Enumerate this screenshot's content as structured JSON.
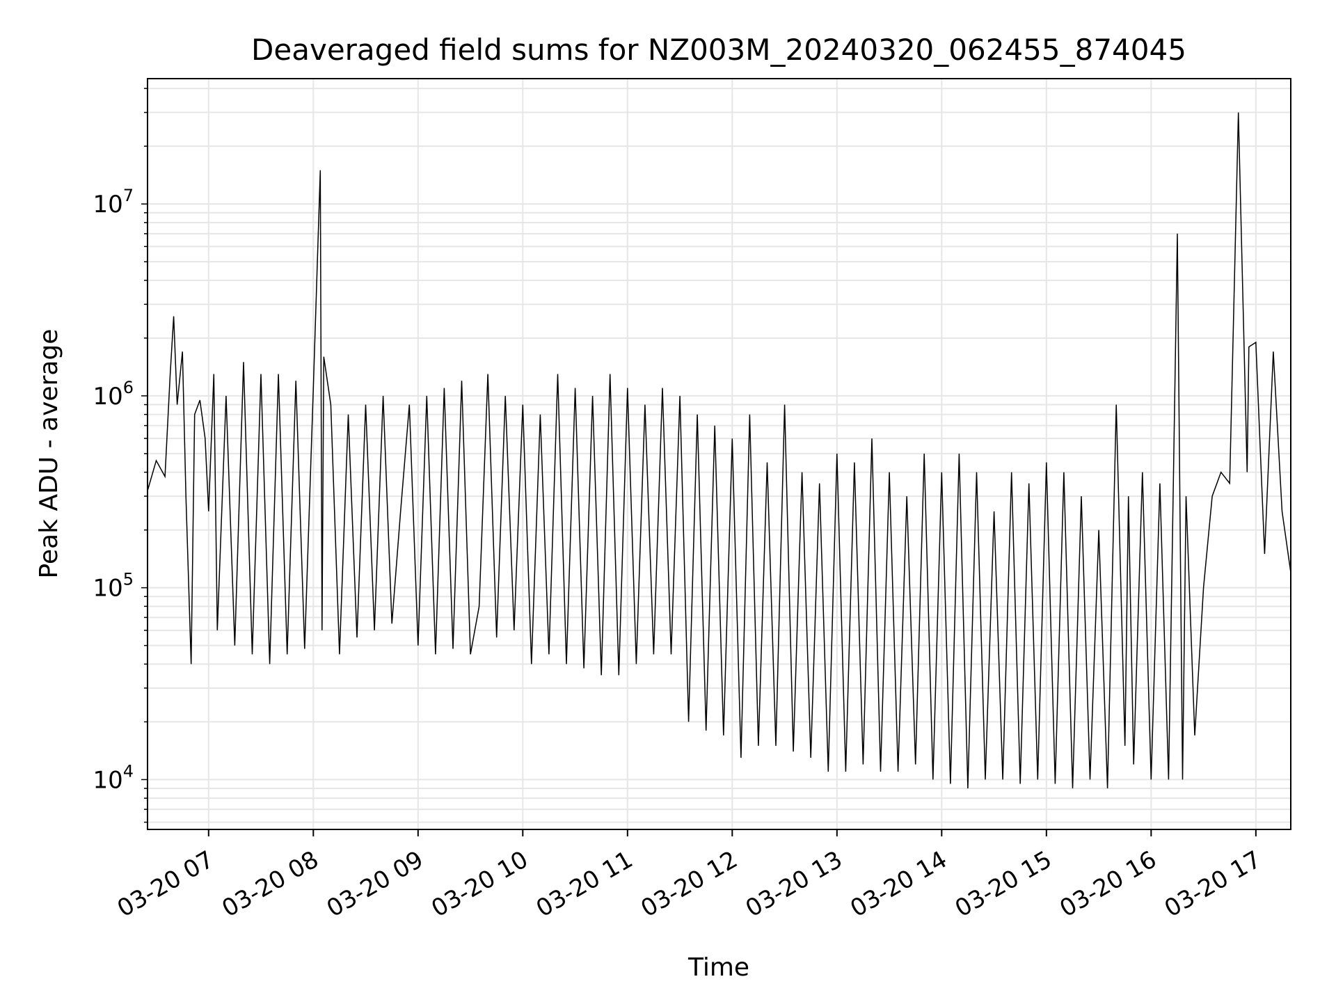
{
  "chart_data": {
    "type": "line",
    "title": "Deaveraged field sums for NZ003M_20240320_062455_874045",
    "xlabel": "Time",
    "ylabel": "Peak ADU - average",
    "x_scale": "time",
    "y_scale": "log",
    "xlim": [
      "03-20 06:25",
      "03-20 17:20"
    ],
    "ylim": [
      5500,
      45000000
    ],
    "grid": true,
    "grid_minor": true,
    "line_color": "#000000",
    "x_tick_labels": [
      "03-20 07",
      "03-20 08",
      "03-20 09",
      "03-20 10",
      "03-20 11",
      "03-20 12",
      "03-20 13",
      "03-20 14",
      "03-20 15",
      "03-20 16",
      "03-20 17"
    ],
    "y_ticks": [
      {
        "base": "10",
        "exp": "4",
        "value": 10000
      },
      {
        "base": "10",
        "exp": "5",
        "value": 100000
      },
      {
        "base": "10",
        "exp": "6",
        "value": 1000000
      },
      {
        "base": "10",
        "exp": "7",
        "value": 10000000
      }
    ],
    "series": [
      {
        "x": [
          "03-20 06:25",
          "03-20 06:30",
          "03-20 06:35",
          "03-20 06:38",
          "03-20 06:40",
          "03-20 06:42",
          "03-20 06:45",
          "03-20 06:47",
          "03-20 06:50",
          "03-20 06:52",
          "03-20 06:55",
          "03-20 06:58",
          "03-20 07:00",
          "03-20 07:03",
          "03-20 07:05",
          "03-20 07:10",
          "03-20 07:15",
          "03-20 07:20",
          "03-20 07:25",
          "03-20 07:30",
          "03-20 07:35",
          "03-20 07:40",
          "03-20 07:45",
          "03-20 07:50",
          "03-20 07:55",
          "03-20 08:00",
          "03-20 08:04",
          "03-20 08:05",
          "03-20 08:06",
          "03-20 08:10",
          "03-20 08:15",
          "03-20 08:20",
          "03-20 08:25",
          "03-20 08:30",
          "03-20 08:35",
          "03-20 08:40",
          "03-20 08:45",
          "03-20 08:50",
          "03-20 08:55",
          "03-20 09:00",
          "03-20 09:05",
          "03-20 09:10",
          "03-20 09:15",
          "03-20 09:20",
          "03-20 09:25",
          "03-20 09:30",
          "03-20 09:35",
          "03-20 09:40",
          "03-20 09:45",
          "03-20 09:50",
          "03-20 09:55",
          "03-20 10:00",
          "03-20 10:05",
          "03-20 10:10",
          "03-20 10:15",
          "03-20 10:20",
          "03-20 10:25",
          "03-20 10:30",
          "03-20 10:35",
          "03-20 10:40",
          "03-20 10:45",
          "03-20 10:50",
          "03-20 10:55",
          "03-20 11:00",
          "03-20 11:05",
          "03-20 11:10",
          "03-20 11:15",
          "03-20 11:20",
          "03-20 11:25",
          "03-20 11:30",
          "03-20 11:35",
          "03-20 11:40",
          "03-20 11:45",
          "03-20 11:50",
          "03-20 11:55",
          "03-20 12:00",
          "03-20 12:05",
          "03-20 12:10",
          "03-20 12:15",
          "03-20 12:20",
          "03-20 12:25",
          "03-20 12:30",
          "03-20 12:35",
          "03-20 12:40",
          "03-20 12:45",
          "03-20 12:50",
          "03-20 12:55",
          "03-20 13:00",
          "03-20 13:05",
          "03-20 13:10",
          "03-20 13:15",
          "03-20 13:20",
          "03-20 13:25",
          "03-20 13:30",
          "03-20 13:35",
          "03-20 13:40",
          "03-20 13:45",
          "03-20 13:50",
          "03-20 13:55",
          "03-20 14:00",
          "03-20 14:05",
          "03-20 14:10",
          "03-20 14:15",
          "03-20 14:20",
          "03-20 14:25",
          "03-20 14:30",
          "03-20 14:35",
          "03-20 14:40",
          "03-20 14:45",
          "03-20 14:50",
          "03-20 14:55",
          "03-20 15:00",
          "03-20 15:05",
          "03-20 15:10",
          "03-20 15:15",
          "03-20 15:20",
          "03-20 15:25",
          "03-20 15:30",
          "03-20 15:35",
          "03-20 15:40",
          "03-20 15:45",
          "03-20 15:47",
          "03-20 15:50",
          "03-20 15:55",
          "03-20 16:00",
          "03-20 16:05",
          "03-20 16:10",
          "03-20 16:15",
          "03-20 16:18",
          "03-20 16:20",
          "03-20 16:25",
          "03-20 16:30",
          "03-20 16:35",
          "03-20 16:40",
          "03-20 16:45",
          "03-20 16:50",
          "03-20 16:55",
          "03-20 16:56",
          "03-20 17:00",
          "03-20 17:05",
          "03-20 17:10",
          "03-20 17:15",
          "03-20 17:20"
        ],
        "y": [
          320000,
          460000,
          380000,
          1300000,
          2600000,
          900000,
          1700000,
          300000,
          40000,
          800000,
          950000,
          600000,
          250000,
          1300000,
          60000,
          1000000,
          50000,
          1500000,
          45000,
          1300000,
          40000,
          1300000,
          45000,
          1200000,
          48000,
          1100000,
          15000000,
          60000,
          1600000,
          900000,
          45000,
          800000,
          55000,
          900000,
          60000,
          1000000,
          65000,
          250000,
          900000,
          50000,
          1000000,
          45000,
          1100000,
          48000,
          1200000,
          45000,
          80000,
          1300000,
          55000,
          1000000,
          60000,
          900000,
          40000,
          800000,
          45000,
          1300000,
          40000,
          1100000,
          38000,
          1000000,
          35000,
          1300000,
          35000,
          1100000,
          40000,
          900000,
          45000,
          1100000,
          45000,
          1000000,
          20000,
          800000,
          18000,
          700000,
          17000,
          600000,
          13000,
          800000,
          15000,
          450000,
          15000,
          900000,
          14000,
          400000,
          13000,
          350000,
          11000,
          500000,
          11000,
          450000,
          12000,
          600000,
          11000,
          400000,
          11000,
          300000,
          12000,
          500000,
          10000,
          400000,
          9500,
          500000,
          9000,
          400000,
          10000,
          250000,
          10000,
          400000,
          9500,
          350000,
          10000,
          450000,
          9500,
          400000,
          9000,
          300000,
          10000,
          200000,
          9000,
          900000,
          15000,
          300000,
          12000,
          400000,
          10000,
          350000,
          10000,
          7000000,
          10000,
          300000,
          17000,
          100000,
          300000,
          400000,
          350000,
          30000000,
          400000,
          1800000,
          1900000,
          150000,
          1700000,
          250000,
          120000
        ]
      }
    ]
  }
}
